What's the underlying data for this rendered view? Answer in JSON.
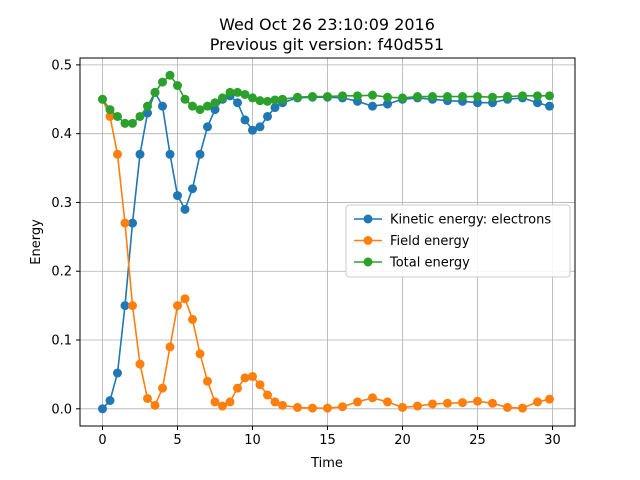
{
  "chart_data": {
    "type": "line",
    "title": "Wed Oct 26 23:10:09 2016",
    "subtitle": "Previous git version: f40d551",
    "xlabel": "Time",
    "ylabel": "Energy",
    "xlim": [
      -1.5,
      31.5
    ],
    "ylim": [
      -0.025,
      0.51
    ],
    "xticks": [
      0,
      5,
      10,
      15,
      20,
      25,
      30
    ],
    "yticks": [
      0.0,
      0.1,
      0.2,
      0.3,
      0.4,
      0.5
    ],
    "xtick_labels": [
      "0",
      "5",
      "10",
      "15",
      "20",
      "25",
      "30"
    ],
    "ytick_labels": [
      "0.0",
      "0.1",
      "0.2",
      "0.3",
      "0.4",
      "0.5"
    ],
    "grid": true,
    "legend_position": "center-right",
    "colors": {
      "kinetic": "#1f77b4",
      "field": "#ff7f0e",
      "total": "#2ca02c"
    },
    "series": [
      {
        "name": "Kinetic energy: electrons",
        "color": "#1f77b4",
        "points": [
          [
            0.0,
            0.0
          ],
          [
            0.5,
            0.012
          ],
          [
            1.0,
            0.052
          ],
          [
            1.5,
            0.15
          ],
          [
            2.0,
            0.27
          ],
          [
            2.5,
            0.37
          ],
          [
            3.0,
            0.43
          ],
          [
            3.5,
            0.46
          ],
          [
            4.0,
            0.44
          ],
          [
            4.5,
            0.37
          ],
          [
            5.0,
            0.31
          ],
          [
            5.5,
            0.29
          ],
          [
            6.0,
            0.32
          ],
          [
            6.5,
            0.37
          ],
          [
            7.0,
            0.41
          ],
          [
            7.5,
            0.435
          ],
          [
            8.0,
            0.45
          ],
          [
            8.5,
            0.455
          ],
          [
            9.0,
            0.445
          ],
          [
            9.5,
            0.42
          ],
          [
            10.0,
            0.405
          ],
          [
            10.5,
            0.41
          ],
          [
            11.0,
            0.425
          ],
          [
            11.5,
            0.438
          ],
          [
            12.0,
            0.445
          ],
          [
            13.0,
            0.452
          ],
          [
            14.0,
            0.453
          ],
          [
            15.0,
            0.453
          ],
          [
            16.0,
            0.452
          ],
          [
            17.0,
            0.447
          ],
          [
            18.0,
            0.44
          ],
          [
            19.0,
            0.443
          ],
          [
            20.0,
            0.45
          ],
          [
            21.0,
            0.452
          ],
          [
            22.0,
            0.45
          ],
          [
            23.0,
            0.448
          ],
          [
            24.0,
            0.447
          ],
          [
            25.0,
            0.445
          ],
          [
            26.0,
            0.445
          ],
          [
            27.0,
            0.45
          ],
          [
            28.0,
            0.452
          ],
          [
            29.0,
            0.445
          ],
          [
            29.8,
            0.44
          ]
        ]
      },
      {
        "name": "Field energy",
        "color": "#ff7f0e",
        "points": [
          [
            0.0,
            0.45
          ],
          [
            0.5,
            0.425
          ],
          [
            1.0,
            0.37
          ],
          [
            1.5,
            0.27
          ],
          [
            2.0,
            0.15
          ],
          [
            2.5,
            0.065
          ],
          [
            3.0,
            0.015
          ],
          [
            3.5,
            0.005
          ],
          [
            4.0,
            0.03
          ],
          [
            4.5,
            0.09
          ],
          [
            5.0,
            0.15
          ],
          [
            5.5,
            0.16
          ],
          [
            6.0,
            0.13
          ],
          [
            6.5,
            0.08
          ],
          [
            7.0,
            0.04
          ],
          [
            7.5,
            0.01
          ],
          [
            8.0,
            0.004
          ],
          [
            8.5,
            0.01
          ],
          [
            9.0,
            0.03
          ],
          [
            9.5,
            0.045
          ],
          [
            10.0,
            0.047
          ],
          [
            10.5,
            0.035
          ],
          [
            11.0,
            0.02
          ],
          [
            11.5,
            0.01
          ],
          [
            12.0,
            0.005
          ],
          [
            13.0,
            0.002
          ],
          [
            14.0,
            0.001
          ],
          [
            15.0,
            0.001
          ],
          [
            16.0,
            0.003
          ],
          [
            17.0,
            0.01
          ],
          [
            18.0,
            0.016
          ],
          [
            19.0,
            0.01
          ],
          [
            20.0,
            0.002
          ],
          [
            21.0,
            0.004
          ],
          [
            22.0,
            0.007
          ],
          [
            23.0,
            0.008
          ],
          [
            24.0,
            0.009
          ],
          [
            25.0,
            0.011
          ],
          [
            26.0,
            0.008
          ],
          [
            27.0,
            0.002
          ],
          [
            28.0,
            0.001
          ],
          [
            29.0,
            0.01
          ],
          [
            29.8,
            0.014
          ]
        ]
      },
      {
        "name": "Total energy",
        "color": "#2ca02c",
        "points": [
          [
            0.0,
            0.45
          ],
          [
            0.5,
            0.435
          ],
          [
            1.0,
            0.425
          ],
          [
            1.5,
            0.415
          ],
          [
            2.0,
            0.415
          ],
          [
            2.5,
            0.425
          ],
          [
            3.0,
            0.44
          ],
          [
            3.5,
            0.46
          ],
          [
            4.0,
            0.475
          ],
          [
            4.5,
            0.485
          ],
          [
            5.0,
            0.47
          ],
          [
            5.5,
            0.45
          ],
          [
            6.0,
            0.44
          ],
          [
            6.5,
            0.435
          ],
          [
            7.0,
            0.44
          ],
          [
            7.5,
            0.445
          ],
          [
            8.0,
            0.452
          ],
          [
            8.5,
            0.46
          ],
          [
            9.0,
            0.46
          ],
          [
            9.5,
            0.457
          ],
          [
            10.0,
            0.452
          ],
          [
            10.5,
            0.448
          ],
          [
            11.0,
            0.447
          ],
          [
            11.5,
            0.449
          ],
          [
            12.0,
            0.45
          ],
          [
            13.0,
            0.453
          ],
          [
            14.0,
            0.454
          ],
          [
            15.0,
            0.454
          ],
          [
            16.0,
            0.455
          ],
          [
            17.0,
            0.455
          ],
          [
            18.0,
            0.456
          ],
          [
            19.0,
            0.453
          ],
          [
            20.0,
            0.452
          ],
          [
            21.0,
            0.454
          ],
          [
            22.0,
            0.454
          ],
          [
            23.0,
            0.454
          ],
          [
            24.0,
            0.454
          ],
          [
            25.0,
            0.454
          ],
          [
            26.0,
            0.453
          ],
          [
            27.0,
            0.454
          ],
          [
            28.0,
            0.455
          ],
          [
            29.0,
            0.455
          ],
          [
            29.8,
            0.455
          ]
        ]
      }
    ]
  }
}
